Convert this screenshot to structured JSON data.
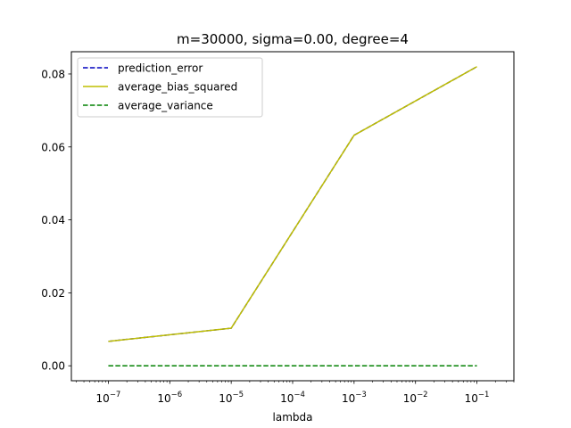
{
  "chart_data": {
    "type": "line",
    "title": "m=30000, sigma=0.00, degree=4",
    "xlabel": "lambda",
    "ylabel": "",
    "xscale": "log",
    "x": [
      1e-07,
      1e-05,
      0.001,
      0.1
    ],
    "xlim": [
      2.5e-08,
      0.4
    ],
    "ylim": [
      -0.0041,
      0.0861
    ],
    "x_ticks": [
      {
        "base": "10",
        "exp": "−7",
        "value": 1e-07
      },
      {
        "base": "10",
        "exp": "−6",
        "value": 1e-06
      },
      {
        "base": "10",
        "exp": "−5",
        "value": 1e-05
      },
      {
        "base": "10",
        "exp": "−4",
        "value": 0.0001
      },
      {
        "base": "10",
        "exp": "−3",
        "value": 0.001
      },
      {
        "base": "10",
        "exp": "−2",
        "value": 0.01
      },
      {
        "base": "10",
        "exp": "−1",
        "value": 0.1
      }
    ],
    "y_ticks": [
      {
        "label": "0.00",
        "value": 0.0
      },
      {
        "label": "0.02",
        "value": 0.02
      },
      {
        "label": "0.04",
        "value": 0.04
      },
      {
        "label": "0.06",
        "value": 0.06
      },
      {
        "label": "0.08",
        "value": 0.08
      }
    ],
    "grid": false,
    "legend_position": "top-left",
    "series": [
      {
        "name": "prediction_error",
        "values": [
          0.0067,
          0.0103,
          0.0632,
          0.082
        ],
        "color": "#0000bf",
        "style": "dashed"
      },
      {
        "name": "average_bias_squared",
        "values": [
          0.0067,
          0.0103,
          0.0632,
          0.082
        ],
        "color": "#bfbf00",
        "style": "solid"
      },
      {
        "name": "average_variance",
        "values": [
          0.0,
          0.0,
          0.0,
          0.0
        ],
        "color": "#008000",
        "style": "dashed"
      }
    ]
  }
}
